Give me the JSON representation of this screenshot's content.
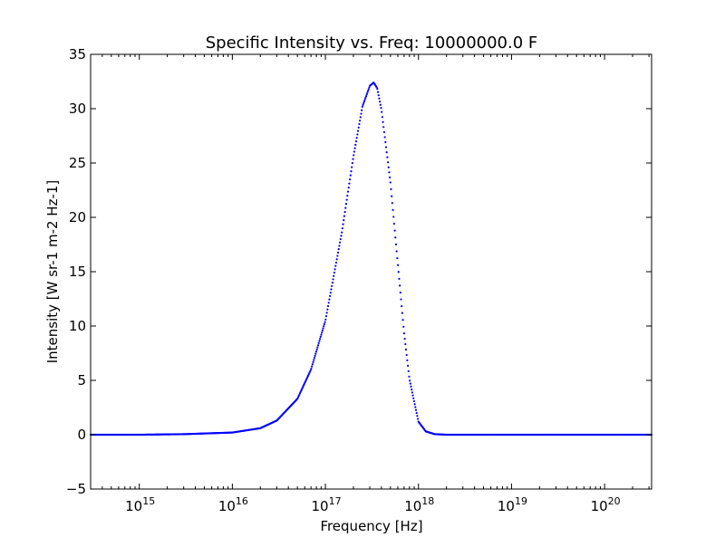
{
  "chart_data": {
    "type": "scatter",
    "title": "Specific Intensity vs. Freq: 10000000.0 F",
    "xlabel": "Frequency [Hz]",
    "ylabel": "Intensity [W sr-1 m-2 Hz-1]",
    "x_scale": "log",
    "xlim": [
      300000000000000.0,
      3.2e+20
    ],
    "ylim": [
      -5,
      35
    ],
    "grid": false,
    "x_ticks": [
      {
        "base": "10",
        "exp": "15",
        "value": 1000000000000000.0
      },
      {
        "base": "10",
        "exp": "16",
        "value": 1e+16
      },
      {
        "base": "10",
        "exp": "17",
        "value": 1e+17
      },
      {
        "base": "10",
        "exp": "18",
        "value": 1e+18
      },
      {
        "base": "10",
        "exp": "19",
        "value": 1e+19
      },
      {
        "base": "10",
        "exp": "20",
        "value": 1e+20
      }
    ],
    "y_ticks": [
      {
        "label": "35",
        "value": 35
      },
      {
        "label": "30",
        "value": 30
      },
      {
        "label": "25",
        "value": 25
      },
      {
        "label": "20",
        "value": 20
      },
      {
        "label": "15",
        "value": 15
      },
      {
        "label": "10",
        "value": 10
      },
      {
        "label": "5",
        "value": 5
      },
      {
        "label": "0",
        "value": 0
      },
      {
        "label": "−5",
        "value": -5
      }
    ],
    "series": [
      {
        "color": "#0000ff",
        "marker": "point",
        "x": [
          300000000000000.0,
          1000000000000000.0,
          3000000000000000.0,
          1e+16,
          2e+16,
          3e+16,
          5e+16,
          7e+16,
          1e+17,
          1.5e+17,
          2e+17,
          2.5e+17,
          3e+17,
          3.3e+17,
          3.6e+17,
          4e+17,
          5e+17,
          6e+17,
          7e+17,
          8e+17,
          1e+18,
          1.2e+18,
          1.5e+18,
          2e+18,
          3e+18,
          1e+19,
          1e+20,
          3.2e+20
        ],
        "y": [
          0.0,
          0.0,
          0.05,
          0.2,
          0.6,
          1.3,
          3.3,
          6.0,
          10.5,
          18.6,
          25.6,
          30.2,
          32.1,
          32.4,
          31.9,
          29.9,
          23.2,
          15.7,
          9.4,
          5.1,
          1.2,
          0.3,
          0.05,
          0.0,
          0.0,
          0.0,
          0.0,
          0.0
        ]
      }
    ]
  }
}
